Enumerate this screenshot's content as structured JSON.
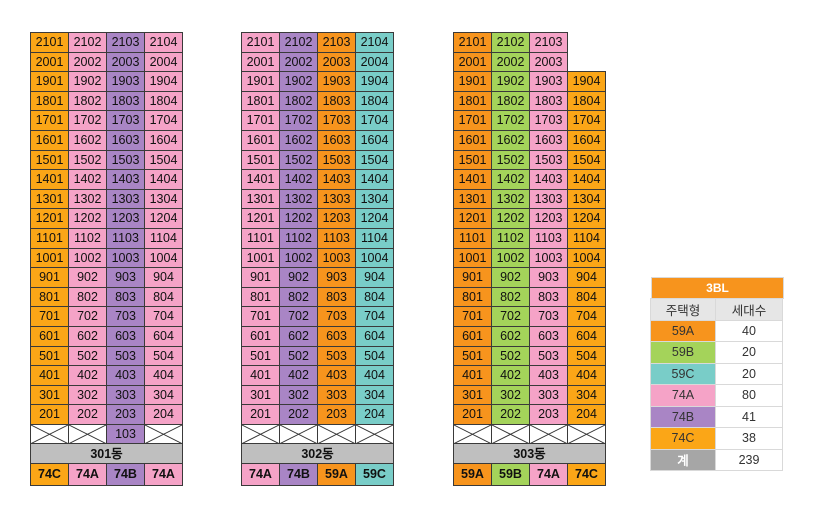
{
  "colors": {
    "59A": "#f7941d",
    "59B": "#a4d35a",
    "59C": "#79cdc8",
    "74A": "#f5a3c7",
    "74B": "#a985c5",
    "74C": "#fba617"
  },
  "buildings": [
    {
      "name": "301동",
      "unit_types": [
        "74C",
        "74A",
        "74B",
        "74A"
      ],
      "units": [
        [
          "2101",
          "2102",
          "2103",
          "2104"
        ],
        [
          "2001",
          "2002",
          "2003",
          "2004"
        ],
        [
          "1901",
          "1902",
          "1903",
          "1904"
        ],
        [
          "1801",
          "1802",
          "1803",
          "1804"
        ],
        [
          "1701",
          "1702",
          "1703",
          "1704"
        ],
        [
          "1601",
          "1602",
          "1603",
          "1604"
        ],
        [
          "1501",
          "1502",
          "1503",
          "1504"
        ],
        [
          "1401",
          "1402",
          "1403",
          "1404"
        ],
        [
          "1301",
          "1302",
          "1303",
          "1304"
        ],
        [
          "1201",
          "1202",
          "1203",
          "1204"
        ],
        [
          "1101",
          "1102",
          "1103",
          "1104"
        ],
        [
          "1001",
          "1002",
          "1003",
          "1004"
        ],
        [
          "901",
          "902",
          "903",
          "904"
        ],
        [
          "801",
          "802",
          "803",
          "804"
        ],
        [
          "701",
          "702",
          "703",
          "704"
        ],
        [
          "601",
          "602",
          "603",
          "604"
        ],
        [
          "501",
          "502",
          "503",
          "504"
        ],
        [
          "401",
          "402",
          "403",
          "404"
        ],
        [
          "301",
          "302",
          "303",
          "304"
        ],
        [
          "201",
          "202",
          "203",
          "204"
        ],
        [
          "",
          "",
          "103",
          ""
        ]
      ]
    },
    {
      "name": "302동",
      "unit_types": [
        "74A",
        "74B",
        "59A",
        "59C"
      ],
      "units": [
        [
          "2101",
          "2102",
          "2103",
          "2104"
        ],
        [
          "2001",
          "2002",
          "2003",
          "2004"
        ],
        [
          "1901",
          "1902",
          "1903",
          "1904"
        ],
        [
          "1801",
          "1802",
          "1803",
          "1804"
        ],
        [
          "1701",
          "1702",
          "1703",
          "1704"
        ],
        [
          "1601",
          "1602",
          "1603",
          "1604"
        ],
        [
          "1501",
          "1502",
          "1503",
          "1504"
        ],
        [
          "1401",
          "1402",
          "1403",
          "1404"
        ],
        [
          "1301",
          "1302",
          "1303",
          "1304"
        ],
        [
          "1201",
          "1202",
          "1203",
          "1204"
        ],
        [
          "1101",
          "1102",
          "1103",
          "1104"
        ],
        [
          "1001",
          "1002",
          "1003",
          "1004"
        ],
        [
          "901",
          "902",
          "903",
          "904"
        ],
        [
          "801",
          "802",
          "803",
          "804"
        ],
        [
          "701",
          "702",
          "703",
          "704"
        ],
        [
          "601",
          "602",
          "603",
          "604"
        ],
        [
          "501",
          "502",
          "503",
          "504"
        ],
        [
          "401",
          "402",
          "403",
          "404"
        ],
        [
          "301",
          "302",
          "303",
          "304"
        ],
        [
          "201",
          "202",
          "203",
          "204"
        ],
        [
          "",
          "",
          "",
          ""
        ]
      ]
    },
    {
      "name": "303동",
      "unit_types": [
        "59A",
        "59B",
        "74A",
        "74C"
      ],
      "units": [
        [
          "2101",
          "2102",
          "2103",
          null
        ],
        [
          "2001",
          "2002",
          "2003",
          null
        ],
        [
          "1901",
          "1902",
          "1903",
          "1904"
        ],
        [
          "1801",
          "1802",
          "1803",
          "1804"
        ],
        [
          "1701",
          "1702",
          "1703",
          "1704"
        ],
        [
          "1601",
          "1602",
          "1603",
          "1604"
        ],
        [
          "1501",
          "1502",
          "1503",
          "1504"
        ],
        [
          "1401",
          "1402",
          "1403",
          "1404"
        ],
        [
          "1301",
          "1302",
          "1303",
          "1304"
        ],
        [
          "1201",
          "1202",
          "1203",
          "1204"
        ],
        [
          "1101",
          "1102",
          "1103",
          "1104"
        ],
        [
          "1001",
          "1002",
          "1003",
          "1004"
        ],
        [
          "901",
          "902",
          "903",
          "904"
        ],
        [
          "801",
          "802",
          "803",
          "804"
        ],
        [
          "701",
          "702",
          "703",
          "704"
        ],
        [
          "601",
          "602",
          "603",
          "604"
        ],
        [
          "501",
          "502",
          "503",
          "504"
        ],
        [
          "401",
          "402",
          "403",
          "404"
        ],
        [
          "301",
          "302",
          "303",
          "304"
        ],
        [
          "201",
          "202",
          "203",
          "204"
        ],
        [
          "",
          "",
          "",
          ""
        ]
      ]
    }
  ],
  "legend": {
    "title": "3BL",
    "col_type": "주택형",
    "col_count": "세대수",
    "rows": [
      {
        "type": "59A",
        "count": "40"
      },
      {
        "type": "59B",
        "count": "20"
      },
      {
        "type": "59C",
        "count": "20"
      },
      {
        "type": "74A",
        "count": "80"
      },
      {
        "type": "74B",
        "count": "41"
      },
      {
        "type": "74C",
        "count": "38"
      }
    ],
    "total_label": "계",
    "total_count": "239"
  }
}
